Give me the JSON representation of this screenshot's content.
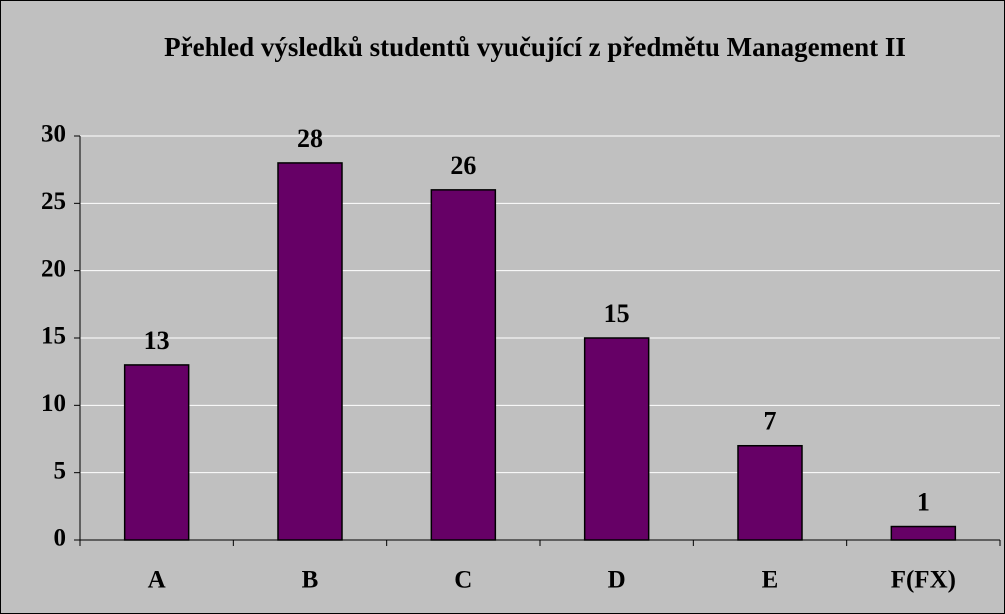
{
  "chart_data": {
    "type": "bar",
    "title": "Přehled výsledků studentů vyučující z předmětu Management II",
    "categories": [
      "A",
      "B",
      "C",
      "D",
      "E",
      "F(FX)"
    ],
    "values": [
      13,
      28,
      26,
      15,
      7,
      1
    ],
    "color": "#660066",
    "ylim": [
      0,
      30
    ],
    "yticks": [
      0,
      5,
      10,
      15,
      20,
      25,
      30
    ],
    "grid": true
  }
}
